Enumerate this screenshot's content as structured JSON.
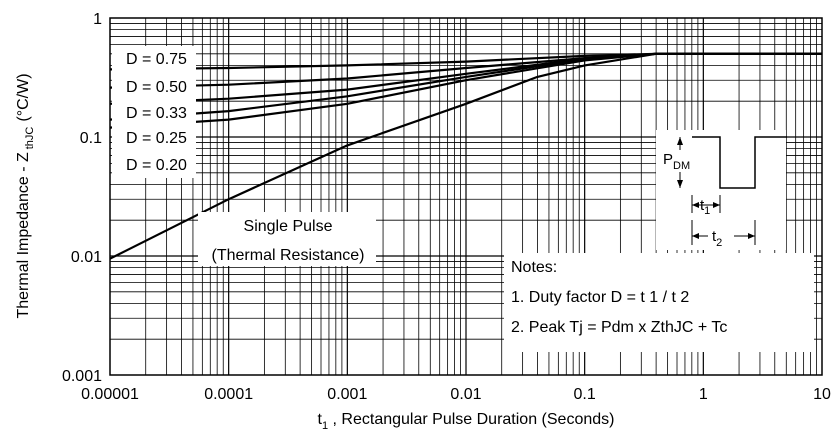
{
  "chart_data": {
    "type": "line",
    "xscale": "log",
    "yscale": "log",
    "xlim": [
      1e-05,
      10
    ],
    "ylim": [
      0.001,
      1
    ],
    "grid": true,
    "xlabel_prefix": "t",
    "xlabel_sub": "1",
    "xlabel_rest": " , Rectangular Pulse Duration (Seconds)",
    "ylabel_main": "Thermal Impedance - Z",
    "ylabel_sub": "thJC",
    "ylabel_unit": "(°C/W)",
    "x_ticks": [
      {
        "value": 1e-05,
        "label": "0.00001"
      },
      {
        "value": 0.0001,
        "label": "0.0001"
      },
      {
        "value": 0.001,
        "label": "0.001"
      },
      {
        "value": 0.01,
        "label": "0.01"
      },
      {
        "value": 0.1,
        "label": "0.1"
      },
      {
        "value": 1,
        "label": "1"
      },
      {
        "value": 10,
        "label": "10"
      }
    ],
    "y_ticks": [
      {
        "value": 0.001,
        "label": "0.001"
      },
      {
        "value": 0.01,
        "label": "0.01"
      },
      {
        "value": 0.1,
        "label": "0.1"
      },
      {
        "value": 1,
        "label": "1"
      }
    ],
    "series": [
      {
        "name": "D = 0.75",
        "x": [
          1e-05,
          0.0001,
          0.001,
          0.01,
          0.1,
          0.4,
          1,
          10
        ],
        "y": [
          0.37,
          0.38,
          0.4,
          0.43,
          0.48,
          0.5,
          0.5,
          0.5
        ]
      },
      {
        "name": "D = 0.50",
        "x": [
          1e-05,
          0.0001,
          0.001,
          0.01,
          0.1,
          0.4,
          1,
          10
        ],
        "y": [
          0.26,
          0.275,
          0.31,
          0.38,
          0.46,
          0.5,
          0.5,
          0.5
        ]
      },
      {
        "name": "D = 0.33",
        "x": [
          1e-05,
          0.0001,
          0.001,
          0.01,
          0.1,
          0.4,
          1,
          10
        ],
        "y": [
          0.19,
          0.21,
          0.25,
          0.34,
          0.455,
          0.5,
          0.5,
          0.5
        ]
      },
      {
        "name": "D = 0.25",
        "x": [
          1e-05,
          0.0001,
          0.001,
          0.01,
          0.1,
          0.4,
          1,
          10
        ],
        "y": [
          0.14,
          0.165,
          0.22,
          0.32,
          0.45,
          0.5,
          0.5,
          0.5
        ]
      },
      {
        "name": "D = 0.20",
        "x": [
          1e-05,
          0.0001,
          0.001,
          0.01,
          0.1,
          0.4,
          1,
          10
        ],
        "y": [
          0.12,
          0.14,
          0.19,
          0.3,
          0.44,
          0.5,
          0.5,
          0.5
        ]
      },
      {
        "name": "Single Pulse",
        "x": [
          1e-05,
          0.0001,
          0.001,
          0.01,
          0.04,
          0.1,
          0.4,
          1,
          10
        ],
        "y": [
          0.0095,
          0.03,
          0.085,
          0.19,
          0.32,
          0.4,
          0.5,
          0.5,
          0.5
        ]
      }
    ],
    "legend_labels": [
      "D = 0.75",
      "D = 0.50",
      "D = 0.33",
      "D = 0.25",
      "D = 0.20"
    ],
    "annotations": {
      "single_pulse_line1": "Single Pulse",
      "single_pulse_line2": "(Thermal Resistance)",
      "notes_title": "Notes:",
      "note1": "1. Duty factor D =  t 1 / t 2",
      "note2": "2. Peak Tj = Pdm x ZthJC + Tc",
      "pdm_main": "P",
      "pdm_sub": "DM",
      "t1_main": "t",
      "t1_sub": "1",
      "t2_main": "t",
      "t2_sub": "2"
    }
  }
}
